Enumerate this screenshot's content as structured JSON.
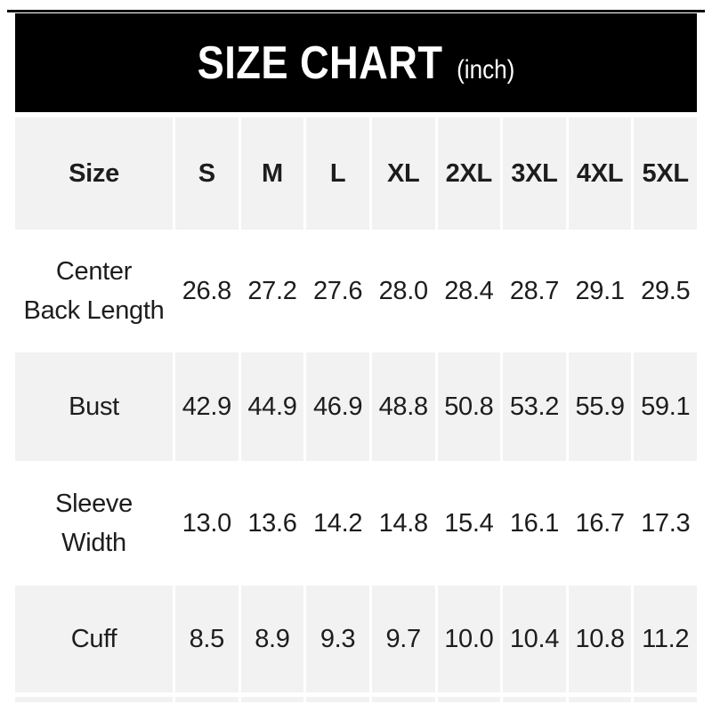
{
  "banner": {
    "title": "SIZE CHART",
    "unit_label": "(inch)"
  },
  "table": {
    "header": [
      "Size",
      "S",
      "M",
      "L",
      "XL",
      "2XL",
      "3XL",
      "4XL",
      "5XL"
    ],
    "rows": [
      {
        "label": "Center Back Length",
        "label_lines": [
          "Center",
          "Back Length"
        ],
        "values": [
          "26.8",
          "27.2",
          "27.6",
          "28.0",
          "28.4",
          "28.7",
          "29.1",
          "29.5"
        ]
      },
      {
        "label": "Bust",
        "label_lines": [
          "Bust"
        ],
        "values": [
          "42.9",
          "44.9",
          "46.9",
          "48.8",
          "50.8",
          "53.2",
          "55.9",
          "59.1"
        ]
      },
      {
        "label": "Sleeve Width",
        "label_lines": [
          "Sleeve",
          "Width"
        ],
        "values": [
          "13.0",
          "13.6",
          "14.2",
          "14.8",
          "15.4",
          "16.1",
          "16.7",
          "17.3"
        ]
      },
      {
        "label": "Cuff",
        "label_lines": [
          "Cuff"
        ],
        "values": [
          "8.5",
          "8.9",
          "9.3",
          "9.7",
          "10.0",
          "10.4",
          "10.8",
          "11.2"
        ]
      }
    ]
  },
  "colors": {
    "banner_bg": "#000000",
    "banner_text": "#ffffff",
    "alt_row_bg": "#f2f2f2",
    "row_bg": "#ffffff",
    "text": "#1d1d1d"
  },
  "chart_data": {
    "type": "table",
    "title": "SIZE CHART",
    "unit": "inch",
    "columns": [
      "S",
      "M",
      "L",
      "XL",
      "2XL",
      "3XL",
      "4XL",
      "5XL"
    ],
    "rows": [
      {
        "measurement": "Center Back Length",
        "values": [
          26.8,
          27.2,
          27.6,
          28.0,
          28.4,
          28.7,
          29.1,
          29.5
        ]
      },
      {
        "measurement": "Bust",
        "values": [
          42.9,
          44.9,
          46.9,
          48.8,
          50.8,
          53.2,
          55.9,
          59.1
        ]
      },
      {
        "measurement": "Sleeve Width",
        "values": [
          13.0,
          13.6,
          14.2,
          14.8,
          15.4,
          16.1,
          16.7,
          17.3
        ]
      },
      {
        "measurement": "Cuff",
        "values": [
          8.5,
          8.9,
          9.3,
          9.7,
          10.0,
          10.4,
          10.8,
          11.2
        ]
      }
    ],
    "layout": {
      "header_fill": "#f2f2f2",
      "alternating_rows": true,
      "legend": "none",
      "grid": "white-gaps"
    }
  }
}
